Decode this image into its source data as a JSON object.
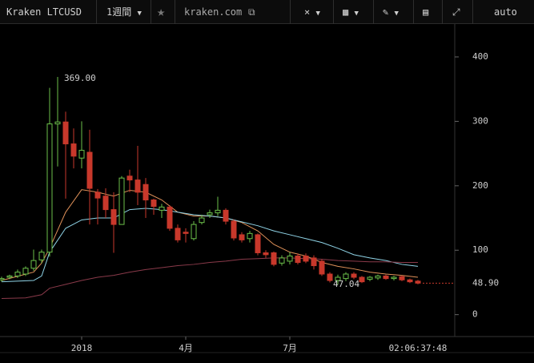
{
  "toolbar": {
    "symbol": "Kraken LTCUSD",
    "interval": "1週間",
    "source": "kraken.com",
    "scale_mode": "auto"
  },
  "chart_data": {
    "type": "candlestick",
    "open": [
      54,
      58,
      60,
      63,
      72,
      85,
      97,
      296,
      299,
      265,
      243,
      252,
      190,
      184,
      163,
      140,
      215,
      209,
      202,
      178,
      162,
      167,
      134,
      128,
      118,
      143,
      155,
      158,
      162,
      145,
      124,
      118,
      124,
      96,
      96,
      80,
      83,
      91,
      91,
      88,
      83,
      63,
      53,
      56,
      63,
      58,
      55,
      57,
      60,
      56,
      59,
      54,
      52
    ],
    "high": [
      59,
      62,
      70,
      75,
      101,
      101,
      352,
      369,
      315,
      289,
      300,
      287,
      195,
      196,
      190,
      215,
      225,
      262,
      212,
      180,
      172,
      170,
      140,
      134,
      145,
      155,
      163,
      183,
      165,
      148,
      128,
      130,
      126,
      100,
      98,
      92,
      97,
      95,
      95,
      92,
      86,
      66,
      62,
      66,
      66,
      60,
      60,
      62,
      62,
      60,
      61,
      56,
      54
    ],
    "low": [
      51,
      55,
      57,
      60,
      68,
      80,
      90,
      230,
      180,
      227,
      227,
      140,
      140,
      150,
      96,
      140,
      190,
      170,
      150,
      155,
      150,
      130,
      112,
      112,
      115,
      140,
      150,
      153,
      140,
      115,
      112,
      112,
      92,
      88,
      75,
      76,
      78,
      78,
      80,
      70,
      60,
      50,
      47.04,
      52,
      55,
      49,
      52,
      54,
      54,
      53,
      52,
      49,
      47
    ],
    "close": [
      56,
      60,
      66,
      72,
      84,
      97,
      296,
      299,
      265,
      246,
      255,
      196,
      181,
      163,
      140,
      212,
      209,
      190,
      178,
      168,
      167,
      134,
      116,
      126,
      140,
      150,
      158,
      162,
      145,
      119,
      116,
      126,
      96,
      93,
      78,
      88,
      91,
      81,
      83,
      76,
      63,
      53,
      58,
      63,
      58,
      51,
      58,
      60,
      56,
      58,
      54,
      51,
      48.9
    ],
    "up_color": "#6cc04a",
    "down_color": "#c8382b",
    "xlim": [
      -0.2,
      56.6
    ],
    "xticks": [
      {
        "value": 10,
        "label": "2018"
      },
      {
        "value": 23,
        "label": "4月"
      },
      {
        "value": 36,
        "label": "7月"
      }
    ],
    "time_label": "02:06:37:48",
    "ylim": [
      -34,
      451
    ],
    "yticks": [
      0,
      100,
      200,
      300,
      400
    ],
    "overlays": [
      {
        "color": "#e0925a",
        "x": [
          0,
          4,
          5,
          6,
          8,
          10,
          12,
          14,
          16,
          18,
          20,
          22,
          24,
          26,
          28,
          30,
          32,
          34,
          36,
          38,
          40,
          42,
          44,
          46,
          48,
          50,
          52
        ],
        "values": [
          53,
          66,
          80,
          103,
          159,
          194,
          190,
          184,
          193,
          190,
          178,
          159,
          153,
          153,
          150,
          143,
          130,
          109,
          97,
          91,
          81,
          75,
          71,
          66,
          63,
          61,
          58
        ]
      },
      {
        "color": "#8fd3e6",
        "x": [
          0,
          4,
          5,
          6,
          8,
          10,
          12,
          14,
          16,
          18,
          20,
          22,
          24,
          26,
          28,
          30,
          32,
          34,
          36,
          38,
          40,
          42,
          44,
          46,
          48,
          50,
          52
        ],
        "values": [
          51,
          53,
          60,
          97,
          134,
          147,
          150,
          150,
          163,
          165,
          163,
          159,
          155,
          153,
          150,
          144,
          138,
          130,
          124,
          118,
          112,
          103,
          93,
          88,
          84,
          78,
          75
        ]
      },
      {
        "color": "#8a3a4a",
        "x": [
          0,
          3,
          5,
          6,
          8,
          10,
          12,
          14,
          16,
          18,
          20,
          22,
          24,
          26,
          28,
          30,
          32,
          34,
          36,
          38,
          40,
          42,
          44,
          46,
          48,
          50,
          52
        ],
        "values": [
          25,
          26,
          31,
          41,
          47,
          53,
          58,
          61,
          66,
          70,
          73,
          76,
          78,
          81,
          83,
          86,
          87,
          88,
          88,
          87,
          86,
          84,
          83,
          82,
          82,
          81,
          81
        ]
      }
    ],
    "annotations": [
      {
        "x": 7,
        "value": 369,
        "label": "369.00"
      },
      {
        "x": 42,
        "value": 47.04,
        "label": "47.04"
      }
    ],
    "last_price": {
      "value": 48.9,
      "label": "48.90"
    }
  }
}
